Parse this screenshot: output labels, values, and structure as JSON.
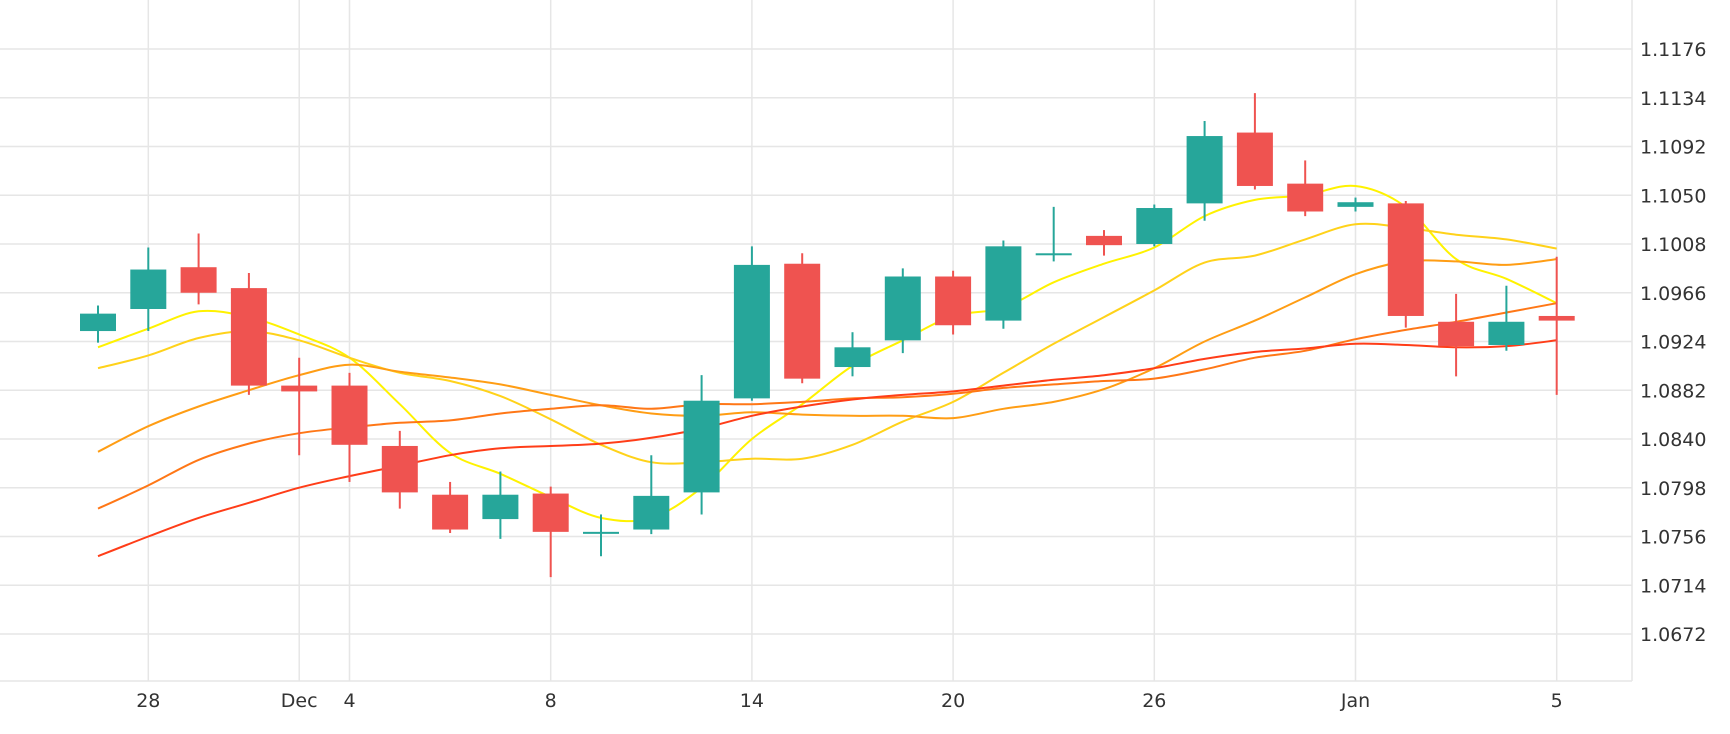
{
  "chart_data": {
    "type": "candlestick",
    "grid": true,
    "x_tick_labels": [
      {
        "index": 1,
        "label": "28"
      },
      {
        "index": 4,
        "label": "Dec"
      },
      {
        "index": 5,
        "label": "4"
      },
      {
        "index": 9,
        "label": "8"
      },
      {
        "index": 13,
        "label": "14"
      },
      {
        "index": 17,
        "label": "20"
      },
      {
        "index": 21,
        "label": "26"
      },
      {
        "index": 25,
        "label": "Jan"
      },
      {
        "index": 29,
        "label": "5"
      }
    ],
    "y_ticks": [
      1.1176,
      1.1134,
      1.1092,
      1.105,
      1.1008,
      1.0966,
      1.0924,
      1.0882,
      1.084,
      1.0798,
      1.0756,
      1.0714,
      1.0672
    ],
    "ylim": [
      1.063,
      1.1218
    ],
    "candles": [
      {
        "o": 1.0933,
        "h": 1.0955,
        "l": 1.0923,
        "c": 1.0948
      },
      {
        "o": 1.0952,
        "h": 1.1005,
        "l": 1.0933,
        "c": 1.0986
      },
      {
        "o": 1.0988,
        "h": 1.1017,
        "l": 1.0956,
        "c": 1.0966
      },
      {
        "o": 1.097,
        "h": 1.0983,
        "l": 1.0878,
        "c": 1.0886
      },
      {
        "o": 1.0886,
        "h": 1.091,
        "l": 1.0826,
        "c": 1.0881
      },
      {
        "o": 1.0886,
        "h": 1.0897,
        "l": 1.0803,
        "c": 1.0835
      },
      {
        "o": 1.0834,
        "h": 1.0847,
        "l": 1.078,
        "c": 1.0794
      },
      {
        "o": 1.0792,
        "h": 1.0803,
        "l": 1.0759,
        "c": 1.0762
      },
      {
        "o": 1.0771,
        "h": 1.0812,
        "l": 1.0754,
        "c": 1.0792
      },
      {
        "o": 1.0793,
        "h": 1.0799,
        "l": 1.0721,
        "c": 1.076
      },
      {
        "o": 1.076,
        "h": 1.0775,
        "l": 1.0739,
        "c": 1.076
      },
      {
        "o": 1.0762,
        "h": 1.0826,
        "l": 1.0758,
        "c": 1.0791
      },
      {
        "o": 1.0794,
        "h": 1.0895,
        "l": 1.0775,
        "c": 1.0873
      },
      {
        "o": 1.0875,
        "h": 1.1006,
        "l": 1.0873,
        "c": 1.099
      },
      {
        "o": 1.0991,
        "h": 1.1,
        "l": 1.0888,
        "c": 1.0892
      },
      {
        "o": 1.0902,
        "h": 1.0932,
        "l": 1.0894,
        "c": 1.0919
      },
      {
        "o": 1.0925,
        "h": 1.0987,
        "l": 1.0914,
        "c": 1.098
      },
      {
        "o": 1.098,
        "h": 1.0985,
        "l": 1.093,
        "c": 1.0938
      },
      {
        "o": 1.0942,
        "h": 1.1011,
        "l": 1.0935,
        "c": 1.1006
      },
      {
        "o": 1.1,
        "h": 1.104,
        "l": 1.0993,
        "c": 1.1
      },
      {
        "o": 1.1015,
        "h": 1.102,
        "l": 1.0998,
        "c": 1.1007
      },
      {
        "o": 1.1008,
        "h": 1.1042,
        "l": 1.1006,
        "c": 1.1039
      },
      {
        "o": 1.1043,
        "h": 1.1114,
        "l": 1.1028,
        "c": 1.1101
      },
      {
        "o": 1.1104,
        "h": 1.1138,
        "l": 1.1055,
        "c": 1.1058
      },
      {
        "o": 1.106,
        "h": 1.108,
        "l": 1.1032,
        "c": 1.1036
      },
      {
        "o": 1.104,
        "h": 1.1048,
        "l": 1.1036,
        "c": 1.1044
      },
      {
        "o": 1.1043,
        "h": 1.1045,
        "l": 1.0936,
        "c": 1.0946
      },
      {
        "o": 1.0941,
        "h": 1.0965,
        "l": 1.0894,
        "c": 1.092
      },
      {
        "o": 1.0921,
        "h": 1.0972,
        "l": 1.0916,
        "c": 1.0941
      },
      {
        "o": 1.0946,
        "h": 1.0997,
        "l": 1.0878,
        "c": 1.0942
      }
    ],
    "ma_series": [
      {
        "color": "#fff200",
        "values": [
          [
            0,
            1.0919
          ],
          [
            1,
            1.0935
          ],
          [
            2,
            1.095
          ],
          [
            3,
            1.0945
          ],
          [
            4,
            1.093
          ],
          [
            5,
            1.091
          ],
          [
            6,
            1.087
          ],
          [
            7,
            1.0828
          ],
          [
            8,
            1.081
          ],
          [
            9,
            1.079
          ],
          [
            10,
            1.0772
          ],
          [
            11,
            1.0772
          ],
          [
            12,
            1.0798
          ],
          [
            13,
            1.084
          ],
          [
            14,
            1.087
          ],
          [
            15,
            1.0903
          ],
          [
            16,
            1.0925
          ],
          [
            17,
            1.0946
          ],
          [
            18,
            1.0953
          ],
          [
            19,
            1.0975
          ],
          [
            20,
            1.0991
          ],
          [
            21,
            1.1005
          ],
          [
            22,
            1.1032
          ],
          [
            23,
            1.1046
          ],
          [
            24,
            1.105
          ],
          [
            25,
            1.1058
          ],
          [
            26,
            1.104
          ],
          [
            27,
            1.0995
          ],
          [
            28,
            1.0978
          ],
          [
            29,
            1.0957
          ]
        ]
      },
      {
        "color": "#ffd21a",
        "values": [
          [
            0,
            1.0901
          ],
          [
            1,
            1.0912
          ],
          [
            2,
            1.0927
          ],
          [
            3,
            1.0933
          ],
          [
            4,
            1.0925
          ],
          [
            5,
            1.091
          ],
          [
            6,
            1.0897
          ],
          [
            7,
            1.089
          ],
          [
            8,
            1.0877
          ],
          [
            9,
            1.0857
          ],
          [
            10,
            1.0835
          ],
          [
            11,
            1.082
          ],
          [
            12,
            1.082
          ],
          [
            13,
            1.0823
          ],
          [
            14,
            1.0823
          ],
          [
            15,
            1.0835
          ],
          [
            16,
            1.0855
          ],
          [
            17,
            1.0872
          ],
          [
            18,
            1.0897
          ],
          [
            19,
            1.0922
          ],
          [
            20,
            1.0945
          ],
          [
            21,
            1.0968
          ],
          [
            22,
            1.0992
          ],
          [
            23,
            1.0998
          ],
          [
            24,
            1.1012
          ],
          [
            25,
            1.1025
          ],
          [
            26,
            1.1022
          ],
          [
            27,
            1.1016
          ],
          [
            28,
            1.1012
          ],
          [
            29,
            1.1004
          ]
        ]
      },
      {
        "color": "#ff9d14",
        "values": [
          [
            0,
            1.0829
          ],
          [
            1,
            1.0851
          ],
          [
            2,
            1.0868
          ],
          [
            3,
            1.0882
          ],
          [
            4,
            1.0895
          ],
          [
            5,
            1.0904
          ],
          [
            6,
            1.0898
          ],
          [
            7,
            1.0893
          ],
          [
            8,
            1.0887
          ],
          [
            9,
            1.0878
          ],
          [
            10,
            1.0869
          ],
          [
            11,
            1.0862
          ],
          [
            12,
            1.086
          ],
          [
            13,
            1.0863
          ],
          [
            14,
            1.0861
          ],
          [
            15,
            1.086
          ],
          [
            16,
            1.086
          ],
          [
            17,
            1.0858
          ],
          [
            18,
            1.0866
          ],
          [
            19,
            1.0872
          ],
          [
            20,
            1.0883
          ],
          [
            21,
            1.0901
          ],
          [
            22,
            1.0924
          ],
          [
            23,
            1.0942
          ],
          [
            24,
            1.0962
          ],
          [
            25,
            1.0982
          ],
          [
            26,
            1.0993
          ],
          [
            27,
            1.0993
          ],
          [
            28,
            1.099
          ],
          [
            29,
            1.0995
          ]
        ]
      },
      {
        "color": "#ff7716",
        "values": [
          [
            0,
            1.078
          ],
          [
            1,
            1.08
          ],
          [
            2,
            1.0822
          ],
          [
            3,
            1.0836
          ],
          [
            4,
            1.0845
          ],
          [
            5,
            1.085
          ],
          [
            6,
            1.0854
          ],
          [
            7,
            1.0856
          ],
          [
            8,
            1.0862
          ],
          [
            9,
            1.0866
          ],
          [
            10,
            1.0869
          ],
          [
            11,
            1.0866
          ],
          [
            12,
            1.087
          ],
          [
            13,
            1.087
          ],
          [
            14,
            1.0872
          ],
          [
            15,
            1.0875
          ],
          [
            16,
            1.0876
          ],
          [
            17,
            1.0879
          ],
          [
            18,
            1.0884
          ],
          [
            19,
            1.0887
          ],
          [
            20,
            1.089
          ],
          [
            21,
            1.0892
          ],
          [
            22,
            1.09
          ],
          [
            23,
            1.091
          ],
          [
            24,
            1.0916
          ],
          [
            25,
            1.0926
          ],
          [
            26,
            1.0934
          ],
          [
            27,
            1.0941
          ],
          [
            28,
            1.0949
          ],
          [
            29,
            1.0957
          ]
        ]
      },
      {
        "color": "#ff3d18",
        "values": [
          [
            0,
            1.0739
          ],
          [
            1,
            1.0756
          ],
          [
            2,
            1.0772
          ],
          [
            3,
            1.0785
          ],
          [
            4,
            1.0798
          ],
          [
            5,
            1.0808
          ],
          [
            6,
            1.0817
          ],
          [
            7,
            1.0826
          ],
          [
            8,
            1.0832
          ],
          [
            9,
            1.0834
          ],
          [
            10,
            1.0836
          ],
          [
            11,
            1.0841
          ],
          [
            12,
            1.0849
          ],
          [
            13,
            1.086
          ],
          [
            14,
            1.0868
          ],
          [
            15,
            1.0874
          ],
          [
            16,
            1.0878
          ],
          [
            17,
            1.0881
          ],
          [
            18,
            1.0886
          ],
          [
            19,
            1.0891
          ],
          [
            20,
            1.0895
          ],
          [
            21,
            1.0901
          ],
          [
            22,
            1.0909
          ],
          [
            23,
            1.0915
          ],
          [
            24,
            1.0918
          ],
          [
            25,
            1.0922
          ],
          [
            26,
            1.0921
          ],
          [
            27,
            1.0919
          ],
          [
            28,
            1.092
          ],
          [
            29,
            1.0925
          ]
        ]
      }
    ],
    "colors": {
      "up": "#26a69a",
      "down": "#ef5350",
      "grid": "#e6e6e6",
      "axis_text": "#333333"
    }
  }
}
